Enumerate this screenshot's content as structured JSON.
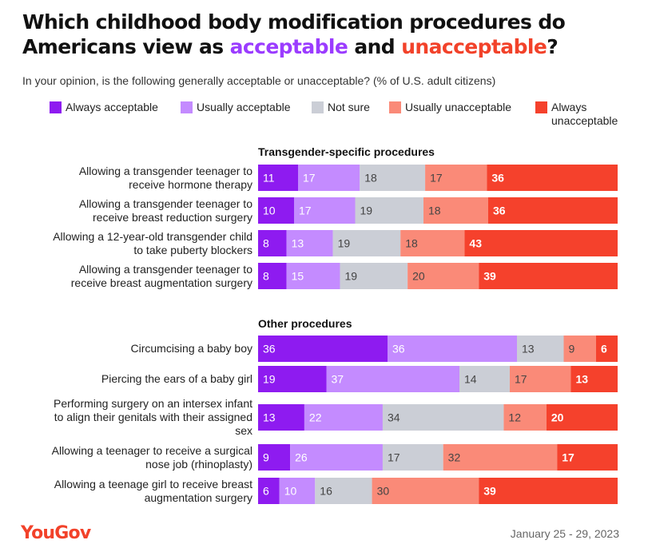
{
  "title_part1": "Which childhood body modification procedures do Americans view as ",
  "title_acceptable": "acceptable",
  "title_and": " and ",
  "title_unacceptable": "unacceptable",
  "title_end": "?",
  "subtitle": "In your opinion, is the following generally acceptable or unacceptable? (% of U.S. adult citizens)",
  "footer": {
    "logo": "YouGov",
    "date": "January 25 - 29, 2023"
  },
  "colors": {
    "always_acceptable": "#8e1bf0",
    "usually_acceptable": "#c48bff",
    "not_sure": "#cbced6",
    "usually_unacceptable": "#fa8a78",
    "always_unacceptable": "#f5412c",
    "title_acceptable": "#9b3cff",
    "title_unacceptable": "#f2422a"
  },
  "chart_data": {
    "type": "bar",
    "orientation": "horizontal",
    "stacked": true,
    "xlim": [
      0,
      100
    ],
    "legend_position": "top",
    "series": [
      {
        "name": "Always acceptable"
      },
      {
        "name": "Usually acceptable"
      },
      {
        "name": "Not sure"
      },
      {
        "name": "Usually unacceptable"
      },
      {
        "name": "Always unacceptable"
      }
    ],
    "groups": [
      {
        "title": "Transgender-specific procedures",
        "rows": [
          {
            "label": "Allowing a transgender teenager to receive hormone therapy",
            "label_lines": [
              "Allowing a transgender teenager to",
              "receive hormone therapy"
            ],
            "values": [
              11,
              17,
              18,
              17,
              36
            ]
          },
          {
            "label": "Allowing a transgender teenager to receive breast reduction surgery",
            "label_lines": [
              "Allowing a transgender teenager to",
              "receive breast reduction surgery"
            ],
            "values": [
              10,
              17,
              19,
              18,
              36
            ]
          },
          {
            "label": "Allowing a 12-year-old transgender child to take puberty blockers",
            "label_lines": [
              "Allowing a 12-year-old transgender child",
              "to take puberty blockers"
            ],
            "values": [
              8,
              13,
              19,
              18,
              43
            ]
          },
          {
            "label": "Allowing a transgender teenager to receive breast augmentation surgery",
            "label_lines": [
              "Allowing a transgender teenager to",
              "receive breast augmentation surgery"
            ],
            "values": [
              8,
              15,
              19,
              20,
              39
            ]
          }
        ]
      },
      {
        "title": "Other procedures",
        "rows": [
          {
            "label": "Circumcising a baby boy",
            "label_lines": [
              "Circumcising a baby boy"
            ],
            "values": [
              36,
              36,
              13,
              9,
              6
            ]
          },
          {
            "label": "Piercing the ears of a baby girl",
            "label_lines": [
              "Piercing the ears of a baby girl"
            ],
            "values": [
              19,
              37,
              14,
              17,
              13
            ]
          },
          {
            "label": "Performing surgery on an intersex infant to align their genitals with their assigned sex",
            "label_lines": [
              "Performing surgery on an intersex infant",
              "to align their genitals with their assigned",
              "sex"
            ],
            "values": [
              13,
              22,
              34,
              12,
              20
            ]
          },
          {
            "label": "Allowing a teenager to receive a surgical nose job (rhinoplasty)",
            "label_lines": [
              "Allowing a teenager to receive a surgical",
              "nose job (rhinoplasty)"
            ],
            "values": [
              9,
              26,
              17,
              32,
              17
            ]
          },
          {
            "label": "Allowing a teenage girl to receive breast augmentation surgery",
            "label_lines": [
              "Allowing a teenage girl to receive breast",
              "augmentation surgery"
            ],
            "values": [
              6,
              10,
              16,
              30,
              39
            ]
          }
        ]
      }
    ]
  }
}
